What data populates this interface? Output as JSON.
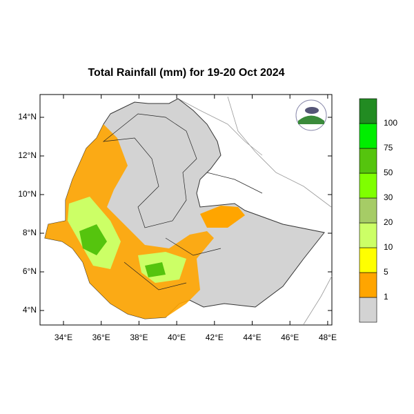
{
  "title": "Total Rainfall (mm) for 19-20 Oct 2024",
  "lat_ticks": [
    "14°N",
    "12°N",
    "10°N",
    "8°N",
    "6°N",
    "4°N"
  ],
  "lon_ticks": [
    "34°E",
    "36°E",
    "38°E",
    "40°E",
    "42°E",
    "44°E",
    "46°E",
    "48°E"
  ],
  "legend": {
    "levels": [
      1,
      5,
      10,
      20,
      30,
      50,
      75,
      100
    ],
    "colors": [
      "#d3d3d3",
      "#ffa500",
      "#ffff00",
      "#ccff66",
      "#a6cc66",
      "#7fff00",
      "#55c40e",
      "#00ee00",
      "#228b22"
    ]
  }
}
